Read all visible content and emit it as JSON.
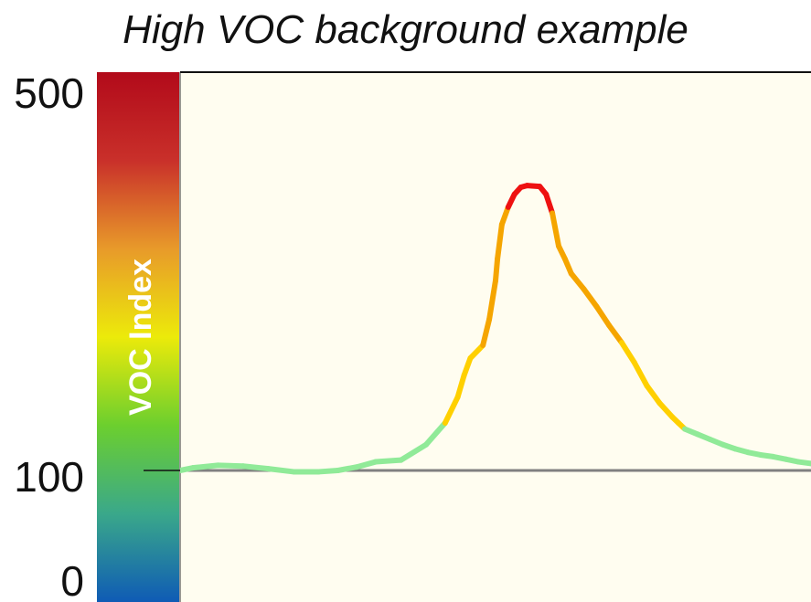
{
  "chart_data": {
    "type": "line",
    "title": "High VOC background example",
    "ylabel": "VOC Index",
    "ylim": [
      0,
      500
    ],
    "yticks": [
      {
        "value": 500,
        "label": "500"
      },
      {
        "value": 100,
        "label": "100"
      },
      {
        "value": 0,
        "label": "0"
      }
    ],
    "reference_line": 100,
    "color_scale": [
      "#0f5bb5",
      "#3aa88a",
      "#6ccf2e",
      "#ecea0a",
      "#e89a2a",
      "#c9302a",
      "#b20a1a"
    ],
    "band_colors": [
      {
        "from": 0,
        "to": 150,
        "color": "#90ea98"
      },
      {
        "from": 150,
        "to": 250,
        "color": "#ffd000"
      },
      {
        "from": 250,
        "to": 400,
        "color": "#f5a500"
      },
      {
        "from": 400,
        "to": 500,
        "color": "#ee1111"
      }
    ],
    "series": [
      {
        "x": [
          0,
          2,
          6,
          10,
          14,
          18,
          22,
          25,
          28,
          31,
          35,
          39,
          42,
          44,
          45,
          46,
          48,
          49,
          50,
          50.3,
          51,
          52,
          53,
          54,
          55,
          57,
          58,
          59,
          60,
          61,
          62,
          64,
          66,
          68,
          70,
          72,
          74,
          76,
          78,
          79,
          80,
          82,
          84,
          86,
          88,
          90,
          92,
          94,
          96,
          98,
          100
        ],
        "y": [
          100,
          103,
          106,
          105,
          102,
          99,
          99,
          100,
          104,
          110,
          112,
          130,
          155,
          185,
          210,
          230,
          245,
          275,
          320,
          345,
          385,
          405,
          420,
          428,
          430,
          429,
          420,
          398,
          360,
          345,
          328,
          310,
          290,
          268,
          248,
          225,
          198,
          178,
          162,
          155,
          148,
          142,
          136,
          130,
          125,
          121,
          118,
          116,
          113,
          110,
          108
        ]
      }
    ]
  }
}
